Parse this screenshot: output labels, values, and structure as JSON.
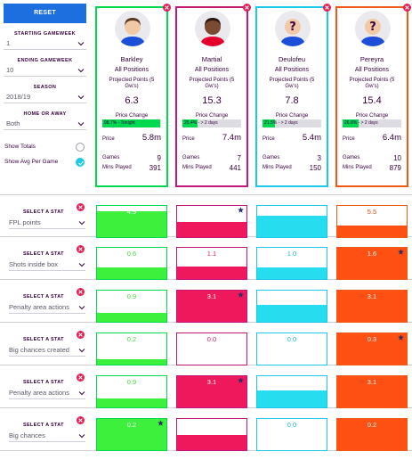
{
  "settings": {
    "reset_label": "RESET",
    "starting_gameweek_label": "STARTING GAMEWEEK",
    "starting_gameweek_value": "1",
    "ending_gameweek_label": "ENDING GAMEWEEK",
    "ending_gameweek_value": "10",
    "season_label": "SEASON",
    "season_value": "2018/19",
    "home_away_label": "HOME OR AWAY",
    "home_away_value": "Both",
    "show_totals_label": "Show Totals",
    "show_totals_checked": false,
    "show_avg_label": "Show Avg Per Game",
    "show_avg_checked": true
  },
  "labels": {
    "projected_points": "Projected Points (5 Gw's)",
    "price_change": "Price Change",
    "price": "Price",
    "games": "Games",
    "mins_played": "Mins Played",
    "select_a_stat": "SELECT A STAT"
  },
  "players": [
    {
      "name": "Barkley",
      "position": "All Positions",
      "projected": "6.3",
      "price_change_text": "98.7% - Tonight",
      "price_change_fill": 0.987,
      "price": "5.8m",
      "games": "9",
      "mins": "391",
      "border": "#00d850",
      "fill": "#3cf03c",
      "text": "#3cdc3c",
      "skin": "#f2c9a6",
      "hair": "#5a3b22",
      "shirt": "#1d4ed8"
    },
    {
      "name": "Martial",
      "position": "All Positions",
      "projected": "15.3",
      "price_change_text": "25.4% - > 2 days",
      "price_change_fill": 0.254,
      "price": "7.4m",
      "games": "7",
      "mins": "441",
      "border": "#c0187c",
      "fill": "#f0185c",
      "text": "#e0186c",
      "skin": "#7a4a32",
      "hair": "#2a1810",
      "shirt": "#e4002b"
    },
    {
      "name": "Deulofeu",
      "position": "All Positions",
      "projected": "7.8",
      "price_change_text": "21.5% - > 2 days",
      "price_change_fill": 0.215,
      "price": "5.4m",
      "games": "3",
      "mins": "150",
      "border": "#1ec8e8",
      "fill": "#28dcf0",
      "text": "#1eb4e0",
      "skin": "#f2c9a6",
      "hair": "#9a9aa8",
      "shirt": "#1d4ed8"
    },
    {
      "name": "Pereyra",
      "position": "All Positions",
      "projected": "15.4",
      "price_change_text": "26.8% - > 2 days",
      "price_change_fill": 0.268,
      "price": "6.4m",
      "games": "10",
      "mins": "879",
      "border": "#f05a14",
      "fill": "#ff5014",
      "text": "#e04a1e",
      "skin": "#f2c9a6",
      "hair": "#9a9aa8",
      "shirt": "#1d4ed8"
    }
  ],
  "stat_rows": [
    {
      "stat": "FPL points",
      "values": [
        "4.9",
        "5.9",
        "4.0",
        "5.5"
      ],
      "fills": [
        0.83,
        0.5,
        0.68,
        0.38
      ],
      "star": 1
    },
    {
      "stat": "Shots inside box",
      "values": [
        "0.6",
        "1.1",
        "1.0",
        "1.6"
      ],
      "fills": [
        0.37,
        0.4,
        0.38,
        1.0
      ],
      "star": 3
    },
    {
      "stat": "Penalty area actions",
      "values": [
        "0.9",
        "3.1",
        "1.7",
        "3.1"
      ],
      "fills": [
        0.29,
        1.0,
        0.55,
        1.0
      ],
      "star": 1
    },
    {
      "stat": "Big chances created",
      "values": [
        "0.2",
        "0.0",
        "0.0",
        "0.3"
      ],
      "fills": [
        0.16,
        0.0,
        0.0,
        1.0
      ],
      "star": 3
    },
    {
      "stat": "Penalty area actions",
      "values": [
        "0.9",
        "3.1",
        "1.7",
        "3.1"
      ],
      "fills": [
        0.29,
        1.0,
        0.55,
        1.0
      ],
      "star": 1
    },
    {
      "stat": "Big chances",
      "values": [
        "0.2",
        "0.1",
        "0.0",
        "0.2"
      ],
      "fills": [
        1.0,
        0.5,
        0.0,
        1.0
      ],
      "star": 0
    }
  ],
  "icons": {
    "remove": "close-icon",
    "dropdown": "chevron-down-icon",
    "best": "star-icon",
    "unknown_player": "question-mark-icon"
  }
}
